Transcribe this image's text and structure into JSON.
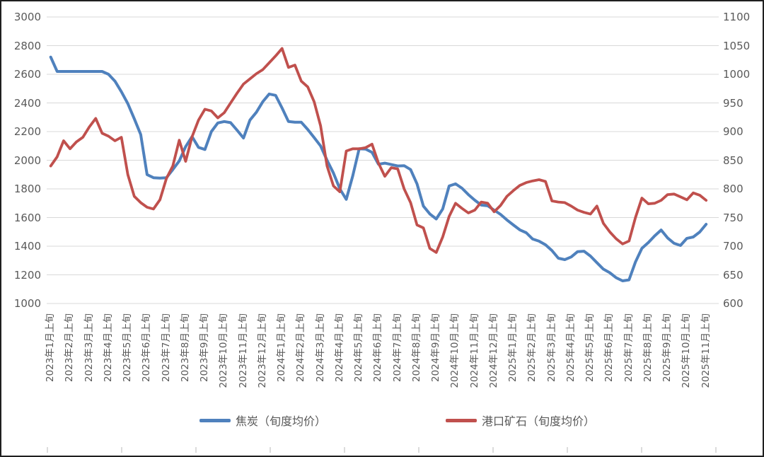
{
  "chart_data": {
    "type": "line",
    "title": "",
    "grid": "horizontal",
    "legend_position": "bottom",
    "points_per_month": 3,
    "x_tick_labels": [
      "2023年1月上旬",
      "2023年2月上旬",
      "2023年3月上旬",
      "2023年4月上旬",
      "2023年5月上旬",
      "2023年6月上旬",
      "2023年7月上旬",
      "2023年8月上旬",
      "2023年9月上旬",
      "2023年10月上旬",
      "2023年11月上旬",
      "2023年12月上旬",
      "2024年1月上旬",
      "2024年2月上旬",
      "2024年3月上旬",
      "2024年4月上旬",
      "2024年5月上旬",
      "2024年6月上旬",
      "2024年7月上旬",
      "2024年8月上旬",
      "2024年9月上旬",
      "2024年10月上旬",
      "2024年11月上旬",
      "2024年12月上旬",
      "2025年1月上旬",
      "2025年2月上旬",
      "2025年3月上旬",
      "2025年4月上旬",
      "2025年5月上旬",
      "2025年6月上旬",
      "2025年7月上旬",
      "2025年8月上旬",
      "2025年9月上旬",
      "2025年10月上旬",
      "2025年11月上旬"
    ],
    "left_axis": {
      "min": 1000,
      "max": 3000,
      "step": 200,
      "ticks": [
        3000,
        2800,
        2600,
        2400,
        2200,
        2000,
        1800,
        1600,
        1400,
        1200,
        1000
      ]
    },
    "right_axis": {
      "min": 600,
      "max": 1100,
      "step": 50,
      "ticks": [
        1100,
        1050,
        1000,
        950,
        900,
        850,
        800,
        750,
        700,
        650,
        600
      ]
    },
    "series": [
      {
        "name": "焦炭（旬度均价）",
        "axis": "left",
        "color": "#4F81BD",
        "values": [
          2720,
          2620,
          2620,
          2620,
          2620,
          2620,
          2620,
          2620,
          2620,
          2600,
          2552,
          2478,
          2395,
          2290,
          2180,
          1900,
          1878,
          1875,
          1878,
          1935,
          1995,
          2095,
          2165,
          2090,
          2075,
          2200,
          2260,
          2270,
          2262,
          2210,
          2155,
          2280,
          2335,
          2408,
          2462,
          2453,
          2365,
          2270,
          2265,
          2265,
          2215,
          2158,
          2100,
          2000,
          1910,
          1800,
          1727,
          1890,
          2080,
          2078,
          2055,
          1972,
          1980,
          1970,
          1960,
          1962,
          1935,
          1835,
          1680,
          1625,
          1590,
          1660,
          1820,
          1835,
          1805,
          1760,
          1721,
          1687,
          1682,
          1652,
          1622,
          1583,
          1548,
          1514,
          1494,
          1450,
          1435,
          1410,
          1370,
          1316,
          1306,
          1325,
          1362,
          1365,
          1331,
          1285,
          1240,
          1215,
          1180,
          1158,
          1165,
          1290,
          1385,
          1425,
          1472,
          1513,
          1458,
          1420,
          1405,
          1455,
          1464,
          1499,
          1553
        ]
      },
      {
        "name": "港口矿石（旬度均价）",
        "axis": "right",
        "color": "#C0504D",
        "values": [
          840,
          856,
          884,
          870,
          882,
          890,
          908,
          923,
          897,
          892,
          884,
          890,
          825,
          787,
          776,
          768,
          765,
          781,
          818,
          840,
          885,
          848,
          891,
          920,
          939,
          936,
          924,
          933,
          950,
          967,
          983,
          992,
          1001,
          1008,
          1020,
          1032,
          1045,
          1012,
          1016,
          988,
          978,
          952,
          910,
          840,
          805,
          795,
          866,
          870,
          870,
          872,
          878,
          845,
          822,
          837,
          835,
          800,
          776,
          737,
          732,
          696,
          689,
          716,
          752,
          775,
          766,
          758,
          763,
          777,
          775,
          760,
          771,
          787,
          797,
          806,
          811,
          814,
          816,
          813,
          779,
          777,
          776,
          770,
          763,
          759,
          756,
          770,
          740,
          725,
          713,
          704,
          709,
          750,
          784,
          774,
          775,
          780,
          790,
          791,
          786,
          781,
          793,
          789,
          780
        ]
      }
    ]
  },
  "legend": {
    "items": [
      {
        "label": "焦炭（旬度均价）",
        "color": "#4F81BD"
      },
      {
        "label": "港口矿石（旬度均价）",
        "color": "#C0504D"
      }
    ]
  },
  "colors": {
    "gridline": "#d9d9d9",
    "axis_text": "#595959",
    "frame": "#1f1f1f",
    "bottom_tick": "#b8b8b8"
  }
}
